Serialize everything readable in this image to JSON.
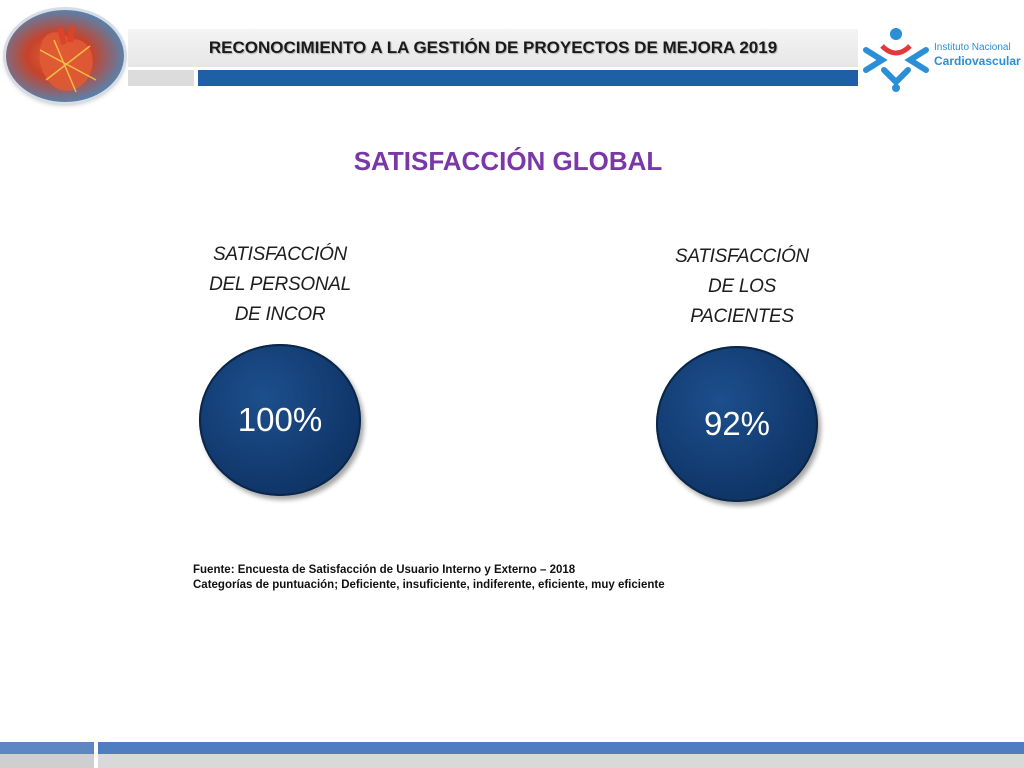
{
  "header": {
    "title": "RECONOCIMIENTO A LA GESTIÓN DE PROYECTOS DE MEJORA 2019",
    "logo_line1": "Instituto Nacional",
    "logo_line2": "Cardiovascular"
  },
  "main_title": "SATISFACCIÓN GLOBAL",
  "personal": {
    "label_lines": [
      "SATISFACCIÓN",
      "DEL PERSONAL",
      "DE INCOR"
    ],
    "value": "100%"
  },
  "pacientes": {
    "label_lines": [
      "SATISFACCIÓN",
      "DE LOS",
      "PACIENTES"
    ],
    "value": "92%"
  },
  "source": {
    "line1": "Fuente: Encuesta de Satisfacción de Usuario Interno y Externo – 2018",
    "line2": "Categorías de puntuación;  Deficiente, insuficiente, indiferente, eficiente, muy eficiente"
  },
  "colors": {
    "title_purple": "#7a37a8",
    "bubble_blue": "#11396e",
    "bar_blue": "#1f5fa6",
    "logo_blue": "#2a8fd6"
  },
  "icons": {
    "left_logo": "heart-illustration-icon",
    "right_logo": "incor-logo-icon"
  }
}
